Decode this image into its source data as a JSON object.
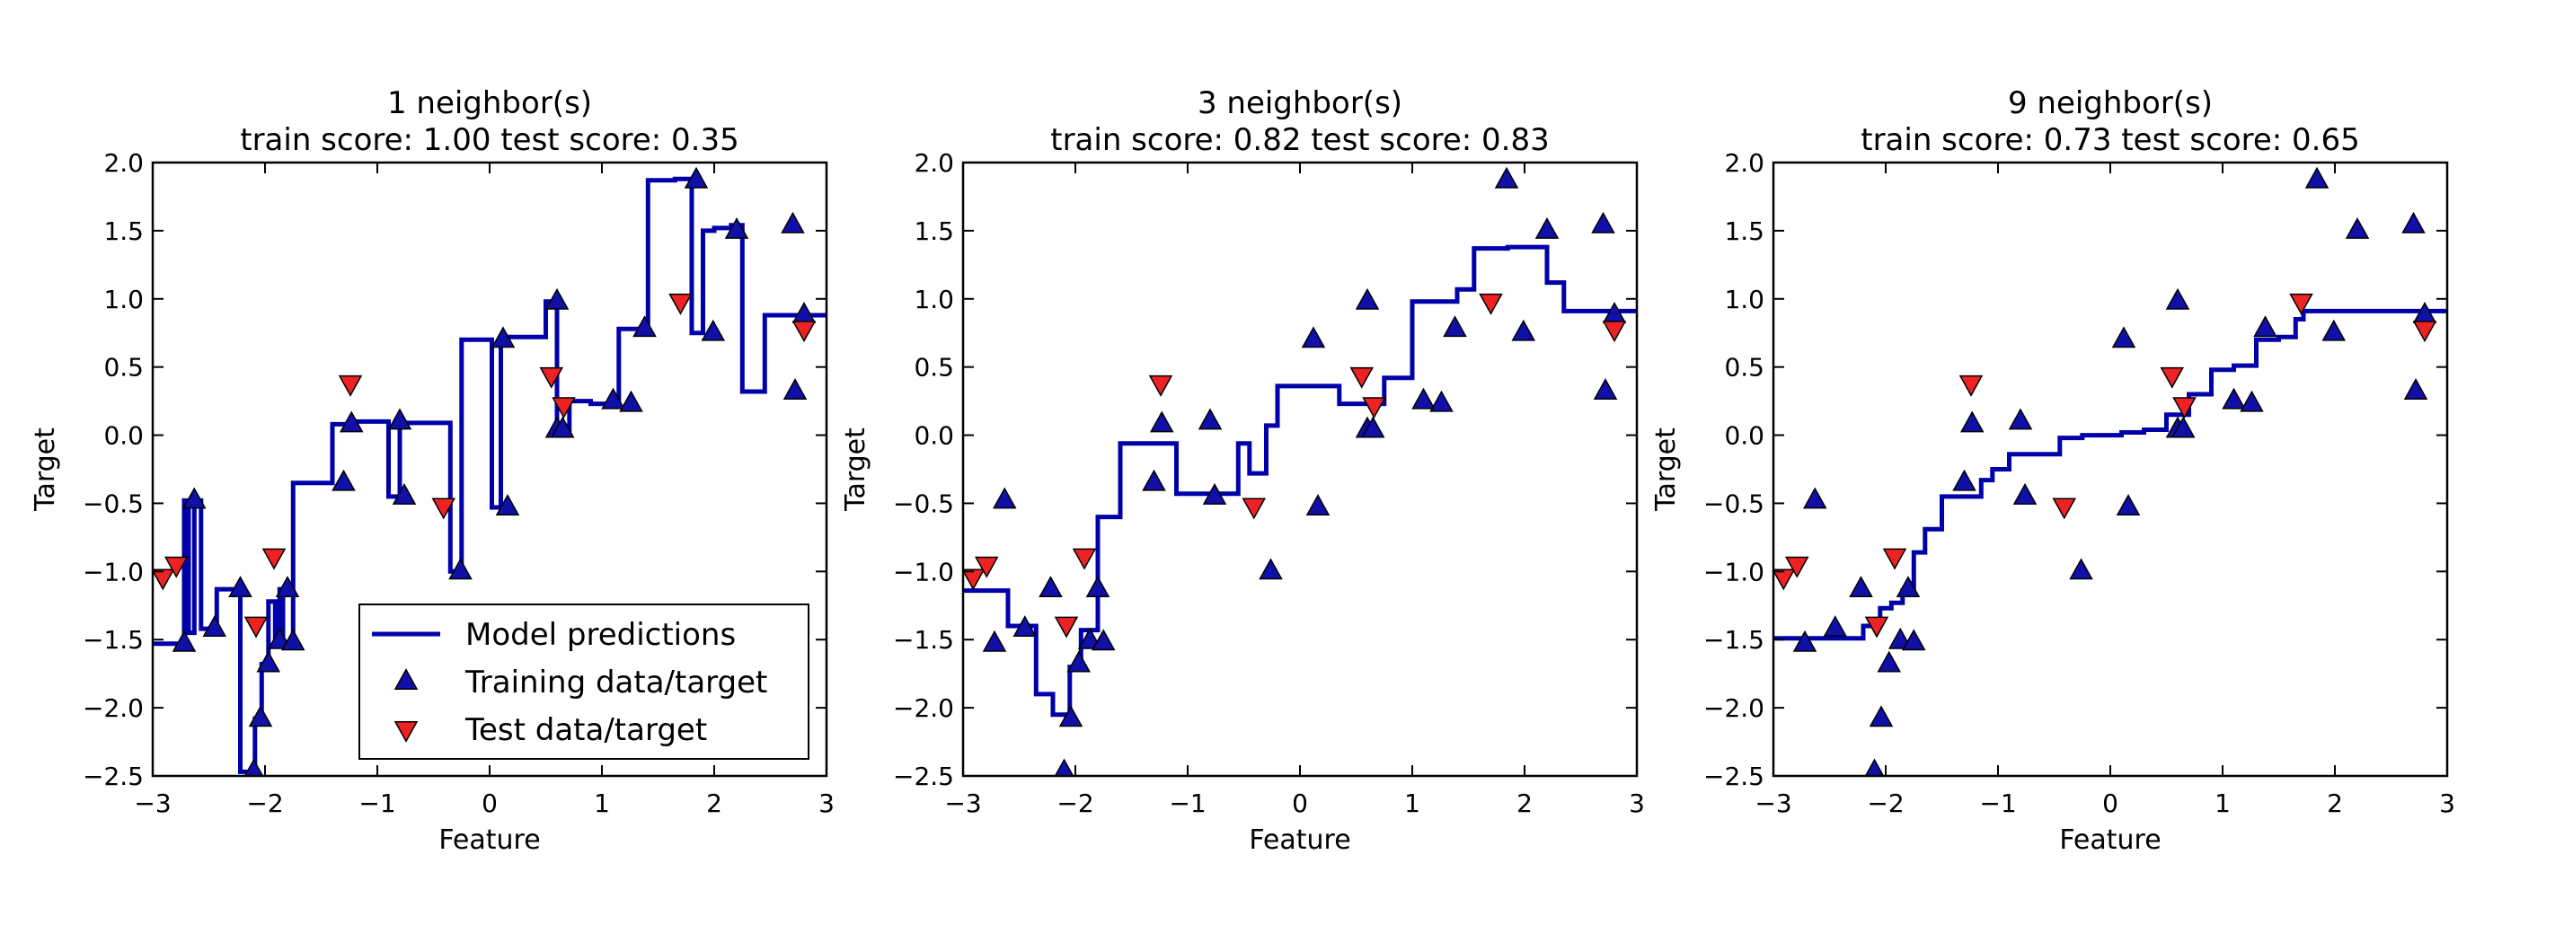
{
  "chart_data": [
    {
      "type": "line+scatter",
      "title": "1 neighbor(s)",
      "subtitle": "train score: 1.00 test score: 0.35",
      "xlabel": "Feature",
      "ylabel": "Target",
      "xlim": [
        -3,
        3
      ],
      "ylim": [
        -2.5,
        2.0
      ],
      "xticks": [
        "−3",
        "−2",
        "−1",
        "0",
        "1",
        "2",
        "3"
      ],
      "yticks": [
        "−2.5",
        "−2.0",
        "−1.5",
        "−1.0",
        "−0.5",
        "0.0",
        "0.5",
        "1.0",
        "1.5",
        "2.0"
      ],
      "legend": {
        "position": "lower-right",
        "entries": [
          "Model predictions",
          "Training data/target",
          "Test data/target"
        ]
      },
      "series": [
        {
          "name": "Model predictions",
          "kind": "step-line",
          "color": "#0000aa",
          "x": [
            -3,
            -2.72,
            -2.72,
            -2.68,
            -2.68,
            -2.63,
            -2.63,
            -2.57,
            -2.57,
            -2.43,
            -2.43,
            -2.22,
            -2.22,
            -2.14,
            -2.14,
            -2.09,
            -2.09,
            -2.03,
            -2.03,
            -1.97,
            -1.97,
            -1.91,
            -1.91,
            -1.87,
            -1.87,
            -1.84,
            -1.84,
            -1.75,
            -1.75,
            -1.4,
            -1.4,
            -1.23,
            -1.23,
            -1.2,
            -1.2,
            -0.9,
            -0.9,
            -0.8,
            -0.8,
            -0.55,
            -0.55,
            -0.35,
            -0.35,
            -0.25,
            -0.25,
            -0.1,
            -0.1,
            0.02,
            0.02,
            0.1,
            0.1,
            0.17,
            0.17,
            0.5,
            0.5,
            0.6,
            0.6,
            0.64,
            0.64,
            0.71,
            0.71,
            0.9,
            0.9,
            1.15,
            1.15,
            1.3,
            1.3,
            1.41,
            1.41,
            1.65,
            1.65,
            1.8,
            1.8,
            1.9,
            1.9,
            2.0,
            2.0,
            2.15,
            2.15,
            2.25,
            2.25,
            2.45,
            2.45,
            2.67,
            2.67,
            2.72,
            2.72,
            2.8,
            2.8,
            3.0
          ],
          "y": [
            -1.53,
            -1.53,
            -0.48,
            -0.48,
            -1.45,
            -1.45,
            -0.48,
            -0.48,
            -1.42,
            -1.42,
            -1.13,
            -1.13,
            -2.47,
            -2.47,
            -2.47,
            -2.47,
            -2.08,
            -2.08,
            -1.68,
            -1.68,
            -1.22,
            -1.22,
            -1.51,
            -1.51,
            -1.13,
            -1.13,
            -1.52,
            -1.52,
            -0.35,
            -0.35,
            0.08,
            0.08,
            0.1,
            0.1,
            0.1,
            0.1,
            -0.45,
            -0.45,
            0.09,
            0.09,
            0.09,
            0.09,
            -1.0,
            -1.0,
            0.7,
            0.7,
            0.7,
            0.7,
            -0.53,
            -0.53,
            0.72,
            0.72,
            0.72,
            0.72,
            0.98,
            0.98,
            0.04,
            0.04,
            0.04,
            0.04,
            0.25,
            0.25,
            0.23,
            0.23,
            0.78,
            0.78,
            0.78,
            0.78,
            1.87,
            1.87,
            1.88,
            1.88,
            0.75,
            0.75,
            1.5,
            1.5,
            1.52,
            1.52,
            1.54,
            1.54,
            0.32,
            0.32,
            0.88,
            0.88,
            0.88,
            0.88,
            0.88,
            0.88,
            0.88,
            0.88
          ]
        },
        {
          "name": "Training data/target",
          "kind": "scatter",
          "marker": "triangle-up",
          "color": "#1010a8",
          "x": [
            -2.72,
            -2.63,
            -2.45,
            -2.22,
            -2.1,
            -2.04,
            -1.97,
            -1.87,
            -1.8,
            -1.75,
            -1.3,
            -1.23,
            -0.8,
            -0.76,
            -0.26,
            0.12,
            0.16,
            0.6,
            0.6,
            0.65,
            1.1,
            1.26,
            1.38,
            1.84,
            1.99,
            2.2,
            2.7,
            2.72,
            2.8
          ],
          "y": [
            -1.53,
            -0.48,
            -1.42,
            -1.13,
            -2.47,
            -2.08,
            -1.68,
            -1.51,
            -1.13,
            -1.52,
            -0.35,
            0.08,
            0.1,
            -0.45,
            -1.0,
            0.7,
            -0.53,
            0.98,
            0.04,
            0.04,
            0.25,
            0.23,
            0.78,
            1.87,
            0.75,
            1.5,
            1.54,
            0.32,
            0.88
          ]
        },
        {
          "name": "Test data/target",
          "kind": "scatter",
          "marker": "triangle-down",
          "color": "#ee2222",
          "x": [
            -2.91,
            -2.79,
            -2.08,
            -1.92,
            -1.24,
            -0.41,
            0.55,
            0.66,
            1.7,
            2.8
          ],
          "y": [
            -1.04,
            -0.95,
            -1.39,
            -0.89,
            0.38,
            -0.52,
            0.44,
            0.22,
            0.98,
            0.78
          ]
        }
      ]
    },
    {
      "type": "line+scatter",
      "title": "3 neighbor(s)",
      "subtitle": "train score: 0.82 test score: 0.83",
      "xlabel": "Feature",
      "ylabel": "Target",
      "xlim": [
        -3,
        3
      ],
      "ylim": [
        -2.5,
        2.0
      ],
      "xticks": [
        "−3",
        "−2",
        "−1",
        "0",
        "1",
        "2",
        "3"
      ],
      "yticks": [
        "−2.5",
        "−2.0",
        "−1.5",
        "−1.0",
        "−0.5",
        "0.0",
        "0.5",
        "1.0",
        "1.5",
        "2.0"
      ],
      "series": [
        {
          "name": "Model predictions",
          "kind": "step-line",
          "color": "#0000aa",
          "x": [
            -3,
            -2.6,
            -2.6,
            -2.35,
            -2.35,
            -2.2,
            -2.2,
            -2.05,
            -2.05,
            -1.95,
            -1.95,
            -1.8,
            -1.8,
            -1.6,
            -1.6,
            -1.5,
            -1.5,
            -1.2,
            -1.2,
            -1.1,
            -1.1,
            -0.55,
            -0.55,
            -0.45,
            -0.45,
            -0.3,
            -0.3,
            -0.2,
            -0.2,
            0.15,
            0.15,
            0.35,
            0.35,
            0.75,
            0.75,
            1.0,
            1.0,
            1.4,
            1.4,
            1.55,
            1.55,
            1.85,
            1.85,
            2.2,
            2.2,
            2.35,
            2.35,
            2.5,
            2.5,
            3.0
          ],
          "y": [
            -1.14,
            -1.14,
            -1.4,
            -1.4,
            -1.9,
            -1.9,
            -2.05,
            -2.05,
            -1.7,
            -1.7,
            -1.43,
            -1.43,
            -0.6,
            -0.6,
            -0.06,
            -0.06,
            -0.06,
            -0.06,
            -0.06,
            -0.06,
            -0.43,
            -0.43,
            -0.06,
            -0.06,
            -0.28,
            -0.28,
            0.07,
            0.07,
            0.36,
            0.36,
            0.36,
            0.36,
            0.23,
            0.23,
            0.42,
            0.42,
            0.98,
            0.98,
            1.07,
            1.07,
            1.37,
            1.37,
            1.38,
            1.38,
            1.12,
            1.12,
            0.91,
            0.91,
            0.91,
            0.91
          ]
        },
        {
          "name": "Training data/target",
          "kind": "scatter",
          "marker": "triangle-up",
          "color": "#1010a8",
          "x": [
            -2.72,
            -2.63,
            -2.45,
            -2.22,
            -2.1,
            -2.04,
            -1.97,
            -1.87,
            -1.8,
            -1.75,
            -1.3,
            -1.23,
            -0.8,
            -0.76,
            -0.26,
            0.12,
            0.16,
            0.6,
            0.6,
            0.65,
            1.1,
            1.26,
            1.38,
            1.84,
            1.99,
            2.2,
            2.7,
            2.72,
            2.8
          ],
          "y": [
            -1.53,
            -0.48,
            -1.42,
            -1.13,
            -2.47,
            -2.08,
            -1.68,
            -1.51,
            -1.13,
            -1.52,
            -0.35,
            0.08,
            0.1,
            -0.45,
            -1.0,
            0.7,
            -0.53,
            0.98,
            0.04,
            0.04,
            0.25,
            0.23,
            0.78,
            1.87,
            0.75,
            1.5,
            1.54,
            0.32,
            0.88
          ]
        },
        {
          "name": "Test data/target",
          "kind": "scatter",
          "marker": "triangle-down",
          "color": "#ee2222",
          "x": [
            -2.91,
            -2.79,
            -2.08,
            -1.92,
            -1.24,
            -0.41,
            0.55,
            0.66,
            1.7,
            2.8
          ],
          "y": [
            -1.04,
            -0.95,
            -1.39,
            -0.89,
            0.38,
            -0.52,
            0.44,
            0.22,
            0.98,
            0.78
          ]
        }
      ]
    },
    {
      "type": "line+scatter",
      "title": "9 neighbor(s)",
      "subtitle": "train score: 0.73 test score: 0.65",
      "xlabel": "Feature",
      "ylabel": "Target",
      "xlim": [
        -3,
        3
      ],
      "ylim": [
        -2.5,
        2.0
      ],
      "xticks": [
        "−3",
        "−2",
        "−1",
        "0",
        "1",
        "2",
        "3"
      ],
      "yticks": [
        "−2.5",
        "−2.0",
        "−1.5",
        "−1.0",
        "−0.5",
        "0.0",
        "0.5",
        "1.0",
        "1.5",
        "2.0"
      ],
      "series": [
        {
          "name": "Model predictions",
          "kind": "step-line",
          "color": "#0000aa",
          "x": [
            -3,
            -2.2,
            -2.2,
            -2.05,
            -2.05,
            -1.95,
            -1.95,
            -1.85,
            -1.85,
            -1.75,
            -1.75,
            -1.65,
            -1.65,
            -1.5,
            -1.5,
            -1.3,
            -1.3,
            -1.15,
            -1.15,
            -1.05,
            -1.05,
            -0.9,
            -0.9,
            -0.75,
            -0.75,
            -0.6,
            -0.6,
            -0.45,
            -0.45,
            -0.25,
            -0.25,
            -0.05,
            -0.05,
            0.1,
            0.1,
            0.3,
            0.3,
            0.5,
            0.5,
            0.7,
            0.7,
            0.9,
            0.9,
            1.1,
            1.1,
            1.3,
            1.3,
            1.5,
            1.5,
            1.65,
            1.65,
            1.72,
            1.72,
            3.0
          ],
          "y": [
            -1.49,
            -1.49,
            -1.4,
            -1.4,
            -1.27,
            -1.27,
            -1.23,
            -1.23,
            -1.14,
            -1.14,
            -0.86,
            -0.86,
            -0.69,
            -0.69,
            -0.45,
            -0.45,
            -0.45,
            -0.45,
            -0.33,
            -0.33,
            -0.25,
            -0.25,
            -0.14,
            -0.14,
            -0.14,
            -0.14,
            -0.14,
            -0.14,
            -0.02,
            -0.02,
            0.0,
            0.0,
            0.0,
            0.0,
            0.02,
            0.02,
            0.04,
            0.04,
            0.15,
            0.15,
            0.3,
            0.3,
            0.48,
            0.48,
            0.51,
            0.51,
            0.7,
            0.7,
            0.72,
            0.72,
            0.85,
            0.85,
            0.91,
            0.91
          ]
        },
        {
          "name": "Training data/target",
          "kind": "scatter",
          "marker": "triangle-up",
          "color": "#1010a8",
          "x": [
            -2.72,
            -2.63,
            -2.45,
            -2.22,
            -2.1,
            -2.04,
            -1.97,
            -1.87,
            -1.8,
            -1.75,
            -1.3,
            -1.23,
            -0.8,
            -0.76,
            -0.26,
            0.12,
            0.16,
            0.6,
            0.6,
            0.65,
            1.1,
            1.26,
            1.38,
            1.84,
            1.99,
            2.2,
            2.7,
            2.72,
            2.8
          ],
          "y": [
            -1.53,
            -0.48,
            -1.42,
            -1.13,
            -2.47,
            -2.08,
            -1.68,
            -1.51,
            -1.13,
            -1.52,
            -0.35,
            0.08,
            0.1,
            -0.45,
            -1.0,
            0.7,
            -0.53,
            0.98,
            0.04,
            0.04,
            0.25,
            0.23,
            0.78,
            1.87,
            0.75,
            1.5,
            1.54,
            0.32,
            0.88
          ]
        },
        {
          "name": "Test data/target",
          "kind": "scatter",
          "marker": "triangle-down",
          "color": "#ee2222",
          "x": [
            -2.91,
            -2.79,
            -2.08,
            -1.92,
            -1.24,
            -0.41,
            0.55,
            0.66,
            1.7,
            2.8
          ],
          "y": [
            -1.04,
            -0.95,
            -1.39,
            -0.89,
            0.38,
            -0.52,
            0.44,
            0.22,
            0.98,
            0.78
          ]
        }
      ]
    }
  ]
}
